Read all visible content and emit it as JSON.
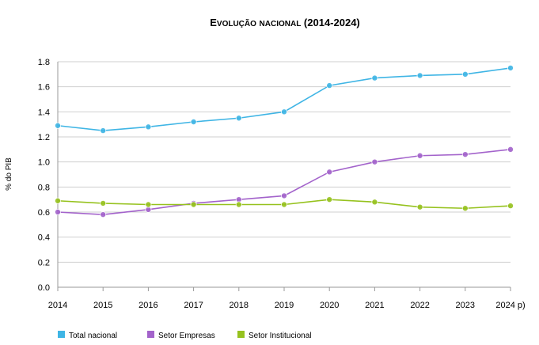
{
  "chart_data": {
    "type": "line",
    "title": "Evolução nacional (2014-2024)",
    "xlabel": "",
    "ylabel": "% do PIB",
    "categories": [
      "2014",
      "2015",
      "2016",
      "2017",
      "2018",
      "2019",
      "2020",
      "2021",
      "2022",
      "2023",
      "2024 p)"
    ],
    "ylim": [
      0,
      1.8
    ],
    "yticks": [
      "0.0",
      "0.2",
      "0.4",
      "0.6",
      "0.8",
      "1.0",
      "1.2",
      "1.4",
      "1.6",
      "1.8"
    ],
    "grid": true,
    "legend_position": "bottom",
    "series": [
      {
        "name": "Total nacional",
        "color": "#3fb5e5",
        "values": [
          1.29,
          1.25,
          1.28,
          1.32,
          1.35,
          1.4,
          1.61,
          1.67,
          1.69,
          1.7,
          1.75
        ]
      },
      {
        "name": "Setor Empresas",
        "color": "#a363cb",
        "values": [
          0.6,
          0.58,
          0.62,
          0.67,
          0.7,
          0.73,
          0.92,
          1.0,
          1.05,
          1.06,
          1.1
        ]
      },
      {
        "name": "Setor Institucional",
        "color": "#96c21e",
        "values": [
          0.69,
          0.67,
          0.66,
          0.66,
          0.66,
          0.66,
          0.7,
          0.68,
          0.64,
          0.63,
          0.65
        ]
      }
    ]
  }
}
